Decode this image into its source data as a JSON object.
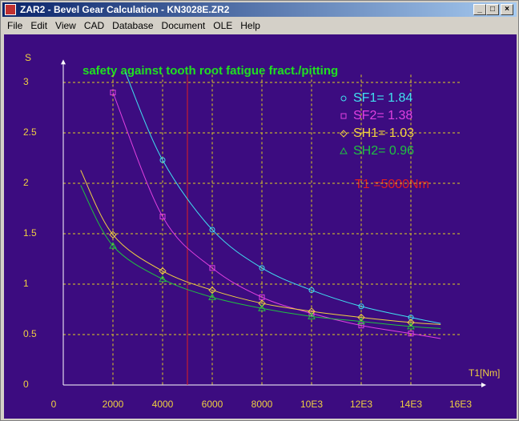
{
  "window": {
    "title": "ZAR2 - Bevel Gear Calculation  -  KN3028E.ZR2",
    "menu": [
      "File",
      "Edit",
      "View",
      "CAD",
      "Database",
      "Document",
      "OLE",
      "Help"
    ]
  },
  "chart_data": {
    "type": "line",
    "title": "safety against tooth root fatigue fract./pitting",
    "x_label": "T1[Nm]",
    "y_label": "S",
    "annotation": "T1 =5000Nm",
    "marker_line_x": 5000,
    "marker_line_color": "#e02020",
    "xlim": [
      0,
      16000
    ],
    "ylim": [
      0,
      3.1
    ],
    "xticks": [
      0,
      2000,
      4000,
      6000,
      8000,
      {
        "value": 10000,
        "label": "10E3"
      },
      {
        "value": 12000,
        "label": "12E3"
      },
      {
        "value": 14000,
        "label": "14E3"
      },
      {
        "value": 16000,
        "label": "16E3"
      }
    ],
    "yticks": [
      0,
      0.5,
      1,
      1.5,
      2,
      2.5,
      3
    ],
    "grid": true,
    "series": [
      {
        "name": "SF1= 1.84",
        "color": "#40e0f0",
        "marker": "circle",
        "x": [
          2500,
          4000,
          6000,
          8000,
          10000,
          12000,
          14000,
          15200
        ],
        "values": [
          3.1,
          2.23,
          1.54,
          1.16,
          0.94,
          0.78,
          0.67,
          0.61
        ]
      },
      {
        "name": "SF2= 1.38",
        "color": "#e040e0",
        "marker": "square",
        "x": [
          2000,
          4000,
          6000,
          8000,
          10000,
          12000,
          14000,
          15200
        ],
        "values": [
          2.9,
          1.67,
          1.16,
          0.87,
          0.71,
          0.59,
          0.51,
          0.46
        ]
      },
      {
        "name": "SH1= 1.03",
        "color": "#f0d040",
        "marker": "diamond",
        "x": [
          700,
          2000,
          4000,
          6000,
          8000,
          10000,
          12000,
          14000,
          15200
        ],
        "values": [
          2.13,
          1.49,
          1.13,
          0.94,
          0.81,
          0.73,
          0.67,
          0.62,
          0.6
        ]
      },
      {
        "name": "SH2= 0.96",
        "color": "#20c040",
        "marker": "triangle",
        "x": [
          700,
          2000,
          4000,
          6000,
          8000,
          10000,
          12000,
          14000,
          15200
        ],
        "values": [
          1.98,
          1.38,
          1.05,
          0.87,
          0.76,
          0.68,
          0.63,
          0.58,
          0.56
        ]
      }
    ]
  }
}
